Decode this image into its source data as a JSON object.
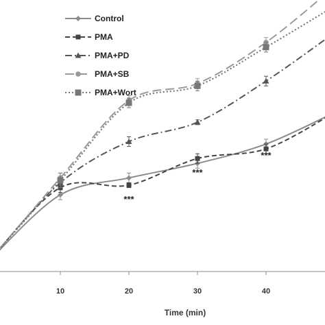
{
  "chart_data": {
    "type": "line",
    "xlabel": "Time (min)",
    "ylabel": "",
    "x_ticks": [
      "10",
      "20",
      "30",
      "40"
    ],
    "xlim": [
      0,
      50
    ],
    "ylim": [
      0,
      100
    ],
    "grid": false,
    "legend_position": "top-left",
    "series": [
      {
        "name": "Control",
        "style": "solid",
        "marker": "diamond",
        "color": "#8c8c8c",
        "points": [
          [
            0,
            2
          ],
          [
            10,
            28
          ],
          [
            20,
            35
          ],
          [
            30,
            41
          ],
          [
            40,
            49
          ],
          [
            50,
            62
          ]
        ],
        "errors": [
          0,
          2,
          2,
          2,
          2,
          2
        ]
      },
      {
        "name": "PMA",
        "style": "dash",
        "marker": "square",
        "color": "#444444",
        "points": [
          [
            0,
            2
          ],
          [
            10,
            31
          ],
          [
            20,
            32
          ],
          [
            30,
            43
          ],
          [
            40,
            47
          ],
          [
            50,
            62
          ]
        ],
        "errors": [
          0,
          2,
          1,
          2,
          2,
          2
        ]
      },
      {
        "name": "PMA+PD",
        "style": "dashdot",
        "marker": "triangle",
        "color": "#555555",
        "points": [
          [
            0,
            2
          ],
          [
            10,
            33
          ],
          [
            20,
            50
          ],
          [
            30,
            58
          ],
          [
            40,
            75
          ],
          [
            50,
            95
          ]
        ],
        "errors": [
          0,
          2,
          2,
          1,
          2,
          2
        ]
      },
      {
        "name": "PMA+SB",
        "style": "longdash",
        "marker": "circle",
        "color": "#999999",
        "points": [
          [
            0,
            2
          ],
          [
            10,
            35
          ],
          [
            20,
            67
          ],
          [
            30,
            74
          ],
          [
            40,
            91
          ],
          [
            50,
            114
          ]
        ],
        "errors": [
          0,
          2,
          2,
          2,
          2,
          2
        ]
      },
      {
        "name": "PMA+Wort",
        "style": "dot",
        "marker": "square-large",
        "color": "#777777",
        "points": [
          [
            0,
            2
          ],
          [
            10,
            34
          ],
          [
            20,
            66
          ],
          [
            30,
            73
          ],
          [
            40,
            89
          ],
          [
            50,
            106
          ]
        ],
        "errors": [
          0,
          3,
          2,
          2,
          2,
          2
        ]
      }
    ],
    "annotations": [
      {
        "text": "***",
        "x": 20,
        "y": 25
      },
      {
        "text": "***",
        "x": 30,
        "y": 36
      },
      {
        "text": "***",
        "x": 40,
        "y": 43
      }
    ]
  }
}
